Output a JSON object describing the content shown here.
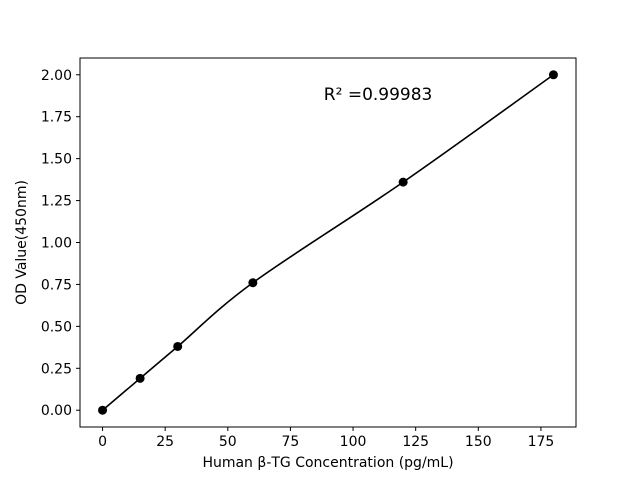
{
  "chart_data": {
    "type": "scatter",
    "title": "",
    "xlabel": "Human β-TG Concentration (pg/mL)",
    "ylabel": "OD Value(450nm)",
    "x": [
      0,
      15,
      30,
      60,
      120,
      180
    ],
    "y": [
      0.0,
      0.19,
      0.38,
      0.76,
      1.36,
      2.0
    ],
    "fit_curve": true,
    "xlim": [
      -9,
      189
    ],
    "ylim": [
      -0.1,
      2.1
    ],
    "xticks": [
      0,
      25,
      50,
      75,
      100,
      125,
      150,
      175
    ],
    "xtick_labels": [
      "0",
      "25",
      "50",
      "75",
      "100",
      "125",
      "150",
      "175"
    ],
    "yticks": [
      0.0,
      0.25,
      0.5,
      0.75,
      1.0,
      1.25,
      1.5,
      1.75,
      2.0
    ],
    "ytick_labels": [
      "0.00",
      "0.25",
      "0.50",
      "0.75",
      "1.00",
      "1.25",
      "1.50",
      "1.75",
      "2.00"
    ],
    "annotation": {
      "text": "R² =0.99983",
      "x": 110,
      "y": 1.85
    },
    "legend": null,
    "grid": false,
    "colors": {
      "line": "#000000",
      "marker": "#000000",
      "axis": "#000000",
      "background": "#ffffff"
    }
  }
}
